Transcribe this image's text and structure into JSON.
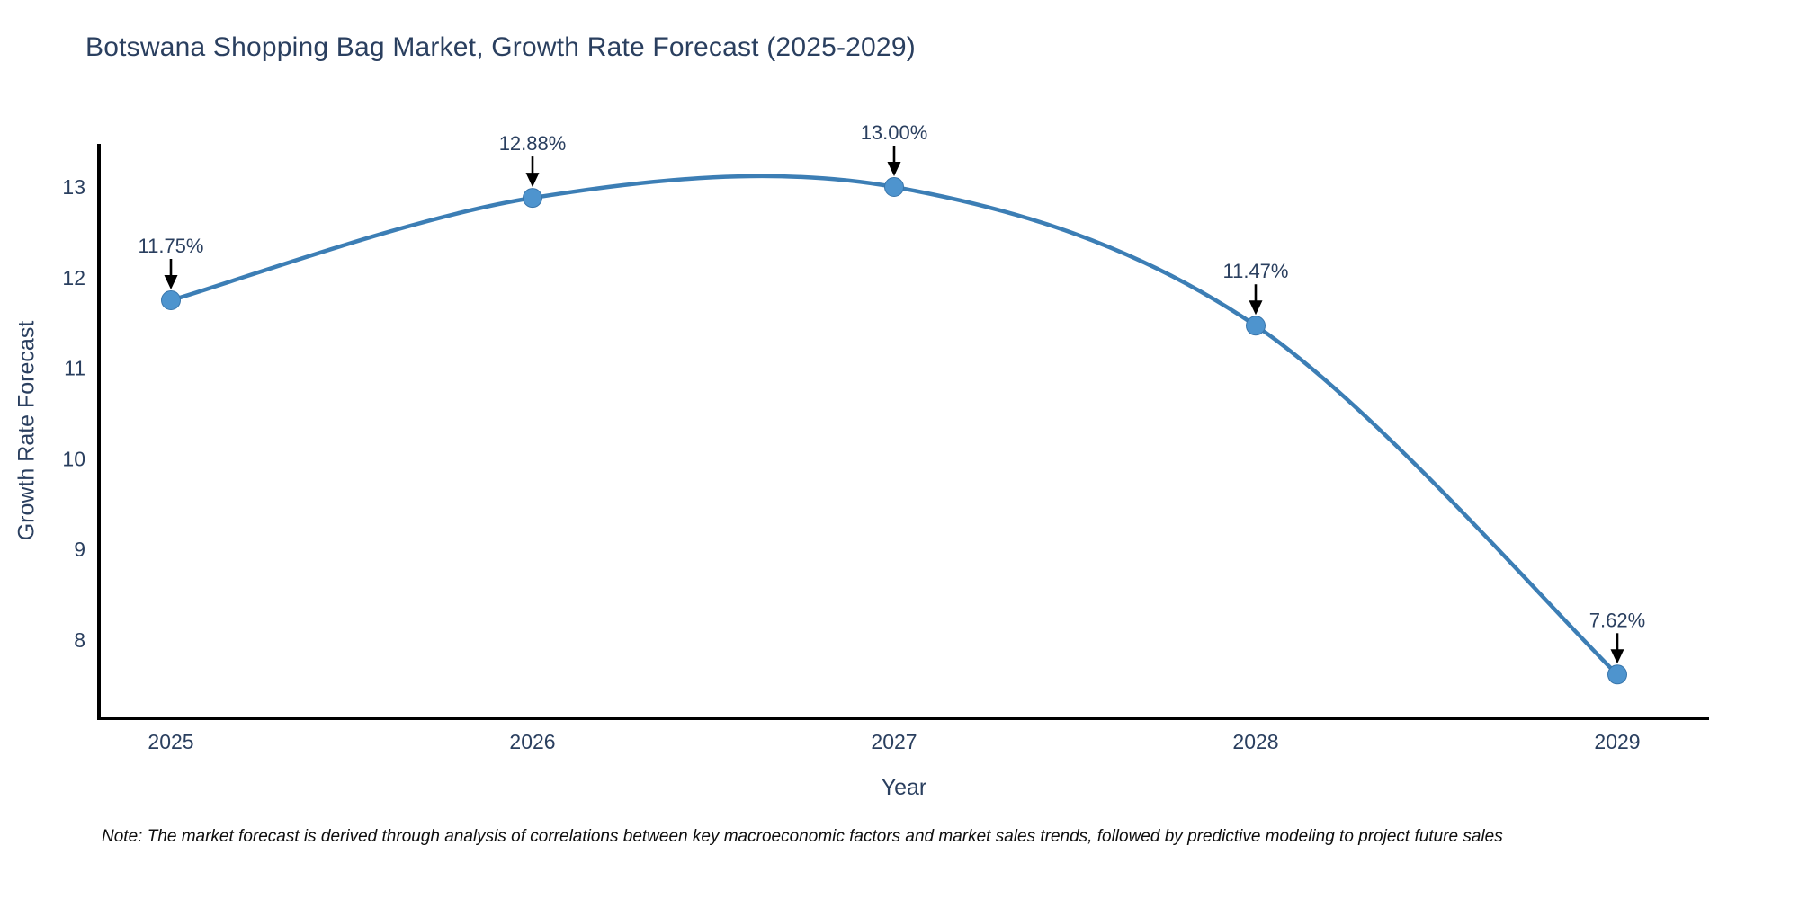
{
  "chart_data": {
    "type": "line",
    "title": "Botswana Shopping Bag Market, Growth Rate Forecast (2025-2029)",
    "xlabel": "Year",
    "ylabel": "Growth Rate Forecast",
    "categories": [
      "2025",
      "2026",
      "2027",
      "2028",
      "2029"
    ],
    "values": [
      11.75,
      12.88,
      13.0,
      11.47,
      7.62
    ],
    "point_labels": [
      "11.75%",
      "12.88%",
      "13.00%",
      "11.47%",
      "7.62%"
    ],
    "yticks": [
      "13",
      "12",
      "11",
      "10",
      "9",
      "8"
    ],
    "ylim": [
      7.15,
      13.48
    ],
    "line_shape": "spline",
    "grid": false,
    "legend": "none",
    "annotation_style": "label-above-with-down-arrow",
    "colors": {
      "line": "#3C7EB5",
      "marker": "#4E94CE",
      "marker_edge": "#3875AB",
      "axis": "#000000",
      "text": "#2a3f5f",
      "arrow": "#000000",
      "note_text": "#0d0d0d",
      "background": "#ffffff"
    },
    "note": "Note: The market forecast is derived through analysis of correlations between key macroeconomic factors and market sales trends, followed by predictive modeling to project future sales"
  }
}
